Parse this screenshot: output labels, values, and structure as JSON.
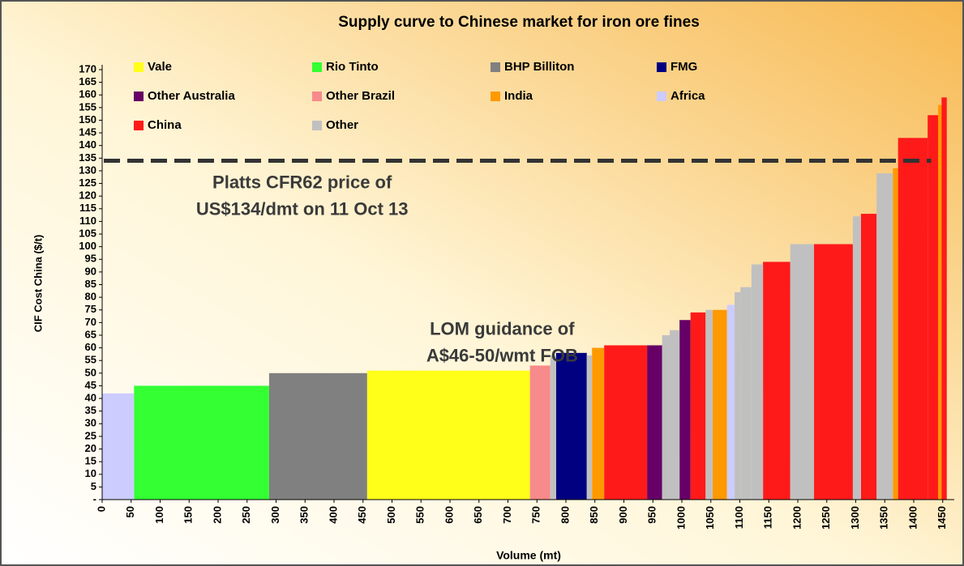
{
  "chart_data": {
    "type": "supply_curve",
    "title": "Supply curve to Chinese market for iron ore fines",
    "x_label": "Volume (mt)",
    "y_label": "CIF Cost China ($/t)",
    "xlim": [
      0,
      1470
    ],
    "ylim": [
      0,
      170
    ],
    "xticks": [
      0,
      50,
      100,
      150,
      200,
      250,
      300,
      350,
      400,
      450,
      500,
      550,
      600,
      650,
      700,
      750,
      800,
      850,
      900,
      950,
      1000,
      1050,
      1100,
      1150,
      1200,
      1250,
      1300,
      1350,
      1400,
      1450
    ],
    "yticks": [
      {
        "value": 0,
        "label": "-"
      },
      5,
      10,
      15,
      20,
      25,
      30,
      35,
      40,
      45,
      50,
      55,
      60,
      65,
      70,
      75,
      80,
      85,
      90,
      95,
      100,
      105,
      110,
      115,
      120,
      125,
      130,
      135,
      140,
      145,
      150,
      155,
      160,
      165,
      170
    ],
    "series": [
      {
        "name": "Vale",
        "color": "#ffff1a",
        "values": [
          51
        ],
        "x0": [
          457
        ],
        "x1": [
          738
        ]
      },
      {
        "name": "Rio Tinto",
        "color": "#33ff33",
        "values": [
          45
        ],
        "x0": [
          55
        ],
        "x1": [
          288
        ]
      },
      {
        "name": "BHP Billiton",
        "color": "#808080",
        "values": [
          50
        ],
        "x0": [
          288
        ],
        "x1": [
          457
        ]
      },
      {
        "name": "FMG",
        "color": "#000080",
        "values": [
          58
        ],
        "x0": [
          783
        ],
        "x1": [
          836
        ]
      },
      {
        "name": "Other Australia",
        "color": "#660066",
        "values": [
          61,
          71
        ],
        "x0": [
          940,
          996
        ],
        "x1": [
          966,
          1015
        ]
      },
      {
        "name": "Other Brazil",
        "color": "#f78a8a",
        "values": [
          53
        ],
        "x0": [
          738
        ],
        "x1": [
          773
        ]
      },
      {
        "name": "India",
        "color": "#ff9900",
        "values": [
          60,
          75,
          131,
          156
        ],
        "x0": [
          845,
          1053,
          1364,
          1442
        ],
        "x1": [
          866,
          1078,
          1373,
          1448
        ]
      },
      {
        "name": "Africa",
        "color": "#ccccff",
        "values": [
          42,
          77
        ],
        "x0": [
          0,
          1078
        ],
        "x1": [
          55,
          1091
        ]
      },
      {
        "name": "China",
        "color": "#ff1a1a",
        "values": [
          61,
          74,
          94,
          101,
          113,
          143,
          152,
          159
        ],
        "x0": [
          866,
          1015,
          1140,
          1228,
          1309,
          1373,
          1424,
          1448
        ],
        "x1": [
          940,
          1041,
          1187,
          1295,
          1336,
          1424,
          1442,
          1457
        ]
      },
      {
        "name": "Other",
        "color": "#c0c0c0",
        "values": [
          57,
          57,
          65,
          67,
          75,
          82,
          84,
          93,
          101,
          112,
          129
        ],
        "x0": [
          773,
          836,
          966,
          979,
          1041,
          1091,
          1101,
          1120,
          1187,
          1295,
          1336
        ],
        "x1": [
          783,
          845,
          979,
          996,
          1053,
          1101,
          1120,
          1140,
          1228,
          1309,
          1364
        ]
      }
    ],
    "reference_line": {
      "value": 134,
      "color": "#333333"
    },
    "annotations": [
      {
        "lines": [
          "Platts CFR62 price of",
          "US$134/dmt on 11 Oct 13"
        ],
        "x": 345,
        "y": 125
      },
      {
        "lines": [
          "LOM guidance of",
          "A$46-50/wmt FOB"
        ],
        "x": 690,
        "y": 67
      }
    ]
  }
}
